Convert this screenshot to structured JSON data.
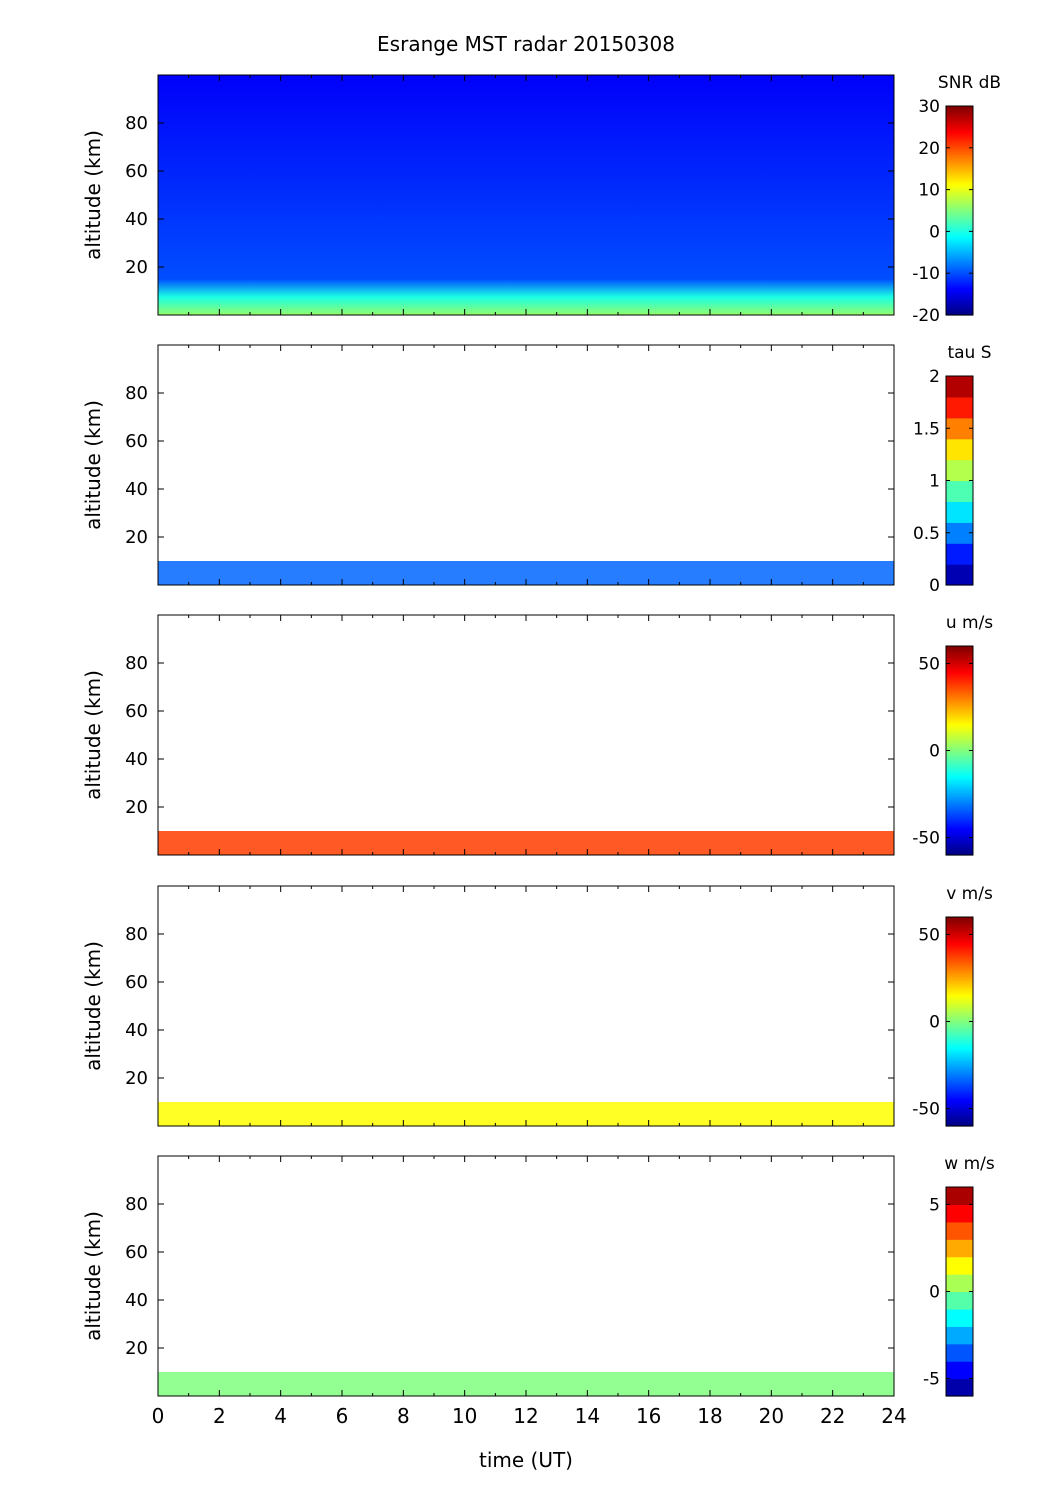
{
  "title": "Esrange MST radar 20150308",
  "xlabel": "time (UT)",
  "chart_data": {
    "type": "heatmap",
    "title": "Esrange MST radar 20150308",
    "xlabel": "time (UT)",
    "xlim": [
      0,
      24
    ],
    "xticks": [
      0,
      2,
      4,
      6,
      8,
      10,
      12,
      14,
      16,
      18,
      20,
      22,
      24
    ],
    "panels": [
      {
        "name": "snr",
        "ylabel": "altitude (km)",
        "ylim": [
          0,
          100
        ],
        "yticks": [
          20,
          40,
          60,
          80
        ],
        "colorbar_label": "SNR dB",
        "clim": [
          -20,
          30
        ],
        "colorbar_ticks": [
          -20,
          -10,
          0,
          10,
          20,
          30
        ],
        "colormap": "jet",
        "levels": 0,
        "fill": "full",
        "layer": {
          "top_km": 15,
          "value": 6,
          "upper_value": -14
        }
      },
      {
        "name": "tau",
        "ylabel": "altitude (km)",
        "ylim": [
          0,
          100
        ],
        "yticks": [
          20,
          40,
          60,
          80
        ],
        "colorbar_label": "tau S",
        "clim": [
          0,
          2
        ],
        "colorbar_ticks": [
          0,
          0.5,
          1,
          1.5,
          2
        ],
        "colormap": "jet",
        "levels": 10,
        "fill": "layer",
        "layer": {
          "top_km": 10,
          "value": 0.45
        }
      },
      {
        "name": "u",
        "ylabel": "altitude (km)",
        "ylim": [
          0,
          100
        ],
        "yticks": [
          20,
          40,
          60,
          80
        ],
        "colorbar_label": "u m/s",
        "clim": [
          -60,
          60
        ],
        "colorbar_ticks": [
          -50,
          0,
          50
        ],
        "colormap": "jet",
        "levels": 0,
        "fill": "layer",
        "layer": {
          "top_km": 10,
          "value": 38
        }
      },
      {
        "name": "v",
        "ylabel": "altitude (km)",
        "ylim": [
          0,
          100
        ],
        "yticks": [
          20,
          40,
          60,
          80
        ],
        "colorbar_label": "v m/s",
        "clim": [
          -60,
          60
        ],
        "colorbar_ticks": [
          -50,
          0,
          50
        ],
        "colormap": "jet",
        "levels": 0,
        "fill": "layer",
        "layer": {
          "top_km": 10,
          "value": 15
        }
      },
      {
        "name": "w",
        "ylabel": "altitude (km)",
        "ylim": [
          0,
          100
        ],
        "yticks": [
          20,
          40,
          60,
          80
        ],
        "colorbar_label": "w m/s",
        "clim": [
          -6,
          6
        ],
        "colorbar_ticks": [
          -5,
          0,
          5
        ],
        "colormap": "jet",
        "levels": 12,
        "fill": "layer",
        "layer": {
          "top_km": 10,
          "value": 0
        }
      }
    ]
  }
}
